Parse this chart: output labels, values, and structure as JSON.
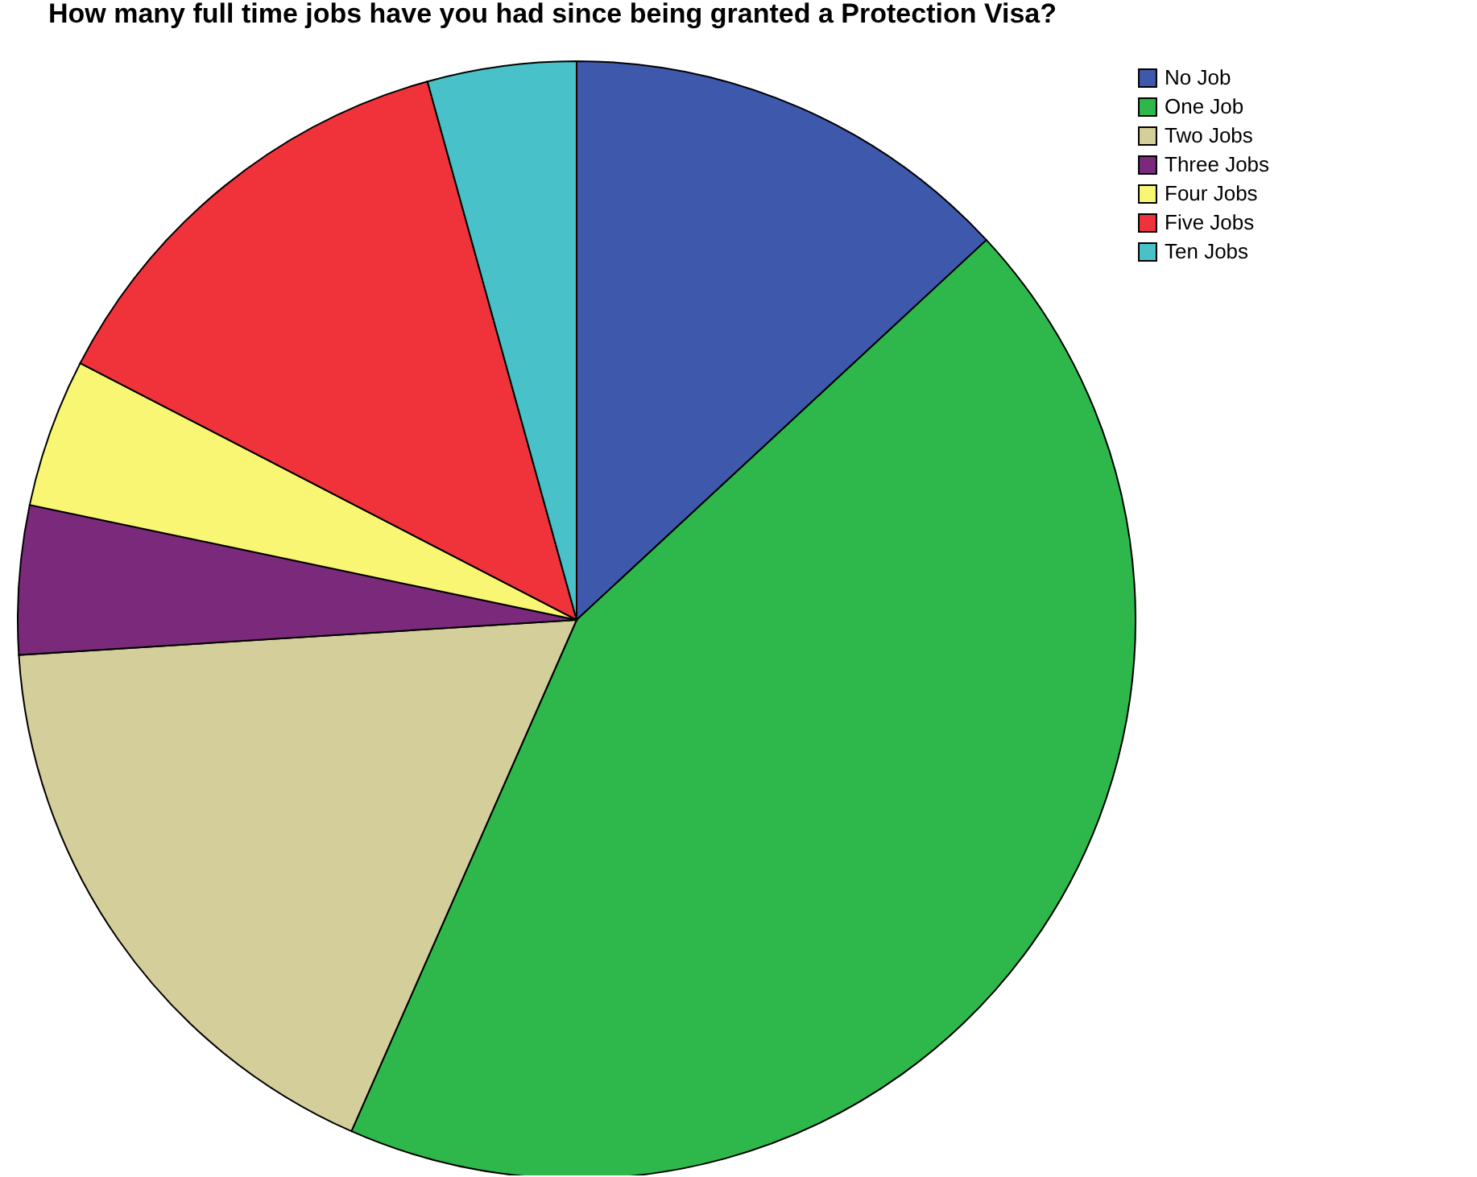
{
  "chart_data": {
    "type": "pie",
    "title": "How many full time jobs have you had since being granted a Protection Visa?",
    "categories": [
      "No Job",
      "One Job",
      "Two Jobs",
      "Three Jobs",
      "Four Jobs",
      "Five Jobs",
      "Ten Jobs"
    ],
    "values": [
      13.1,
      43.5,
      17.4,
      4.3,
      4.3,
      13.1,
      4.3
    ],
    "colors": [
      "#3e58ac",
      "#2eb84b",
      "#d4ce9a",
      "#7b2a7b",
      "#f8f672",
      "#f0323b",
      "#48c2c8"
    ],
    "legend": "top right"
  }
}
